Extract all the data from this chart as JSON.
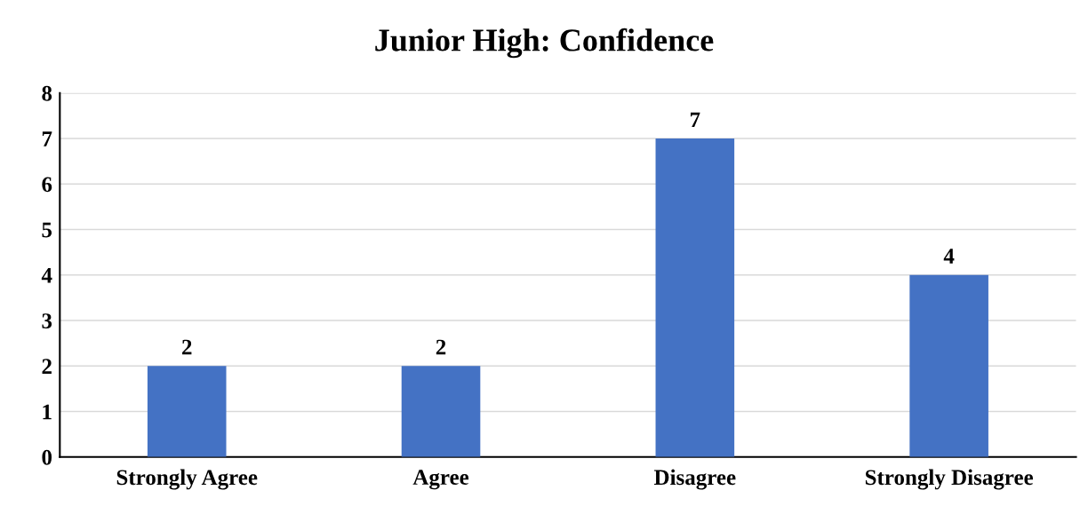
{
  "chart_data": {
    "type": "bar",
    "title": "Junior High: Confidence",
    "categories": [
      "Strongly Agree",
      "Agree",
      "Disagree",
      "Strongly Disagree"
    ],
    "values": [
      2,
      2,
      7,
      4
    ],
    "color": "#4472c4",
    "ylim": [
      0,
      8
    ],
    "yticks": [
      0,
      1,
      2,
      3,
      4,
      5,
      6,
      7,
      8
    ],
    "grid": "y",
    "data_labels": true
  }
}
